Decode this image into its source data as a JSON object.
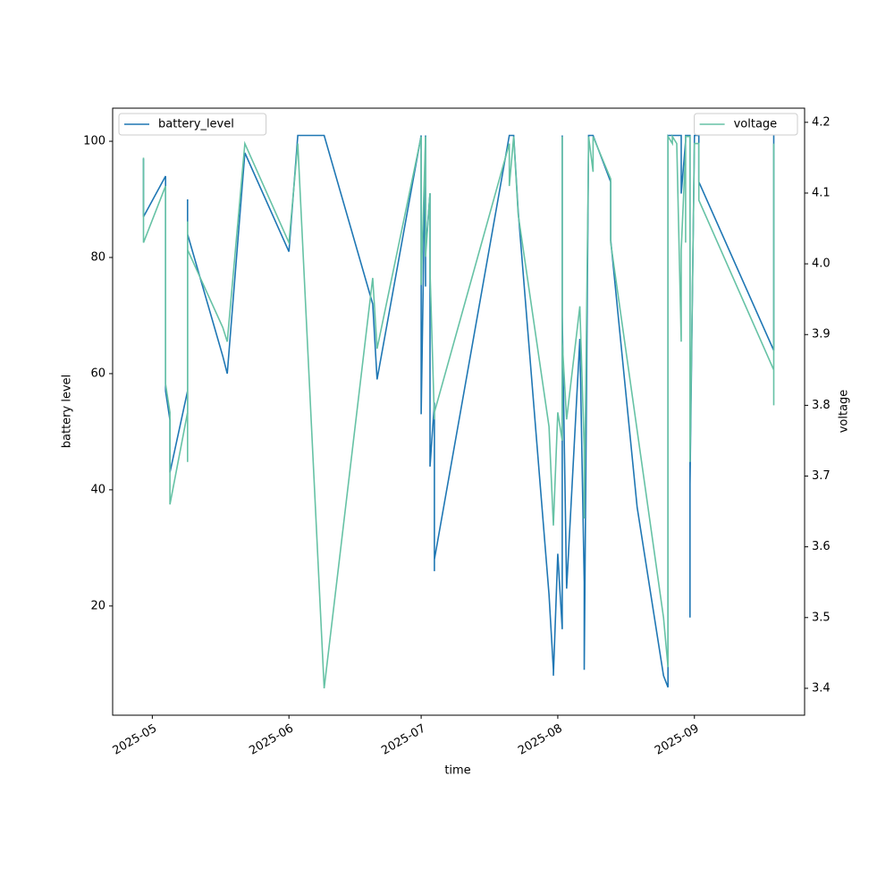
{
  "chart_data": {
    "type": "line",
    "x_label": "time",
    "y_label": "battery level",
    "y2_label": "voltage",
    "xlim": [
      "2025-04-22",
      "2025-09-26"
    ],
    "xticks": [
      "2025-05",
      "2025-06",
      "2025-07",
      "2025-08",
      "2025-09"
    ],
    "ylim": [
      1.2,
      105.7
    ],
    "yticks": [
      20,
      40,
      60,
      80,
      100
    ],
    "y2lim": [
      3.362,
      4.22
    ],
    "y2ticks": [
      3.4,
      3.5,
      3.6,
      3.7,
      3.8,
      3.9,
      {
        "value": 4,
        "label": "4.0"
      },
      4.1,
      4.2
    ],
    "series": [
      {
        "name": "battery_level",
        "color": "#1f77b4",
        "axis": "y",
        "legend": "upper left",
        "x": [
          "2025-04-29",
          "2025-04-29",
          "2025-05-04",
          "2025-05-04",
          "2025-05-05",
          "2025-05-05",
          "2025-05-09",
          "2025-05-09",
          "2025-05-09",
          "2025-05-09",
          "2025-05-17",
          "2025-05-18",
          "2025-05-22",
          "2025-06-01",
          "2025-06-03",
          "2025-06-09",
          "2025-06-20",
          "2025-06-21",
          "2025-07-01",
          "2025-07-01",
          "2025-07-01",
          "2025-07-02",
          "2025-07-02",
          "2025-07-02",
          "2025-07-02",
          "2025-07-03",
          "2025-07-03",
          "2025-07-04",
          "2025-07-04",
          "2025-07-04",
          "2025-07-21",
          "2025-07-22",
          "2025-07-23",
          "2025-07-30",
          "2025-07-31",
          "2025-07-31",
          "2025-08-01",
          "2025-08-02",
          "2025-08-02",
          "2025-08-02",
          "2025-08-03",
          "2025-08-06",
          "2025-08-07",
          "2025-08-07",
          "2025-08-07",
          "2025-08-08",
          "2025-08-09",
          "2025-08-13",
          "2025-08-13",
          "2025-08-19",
          "2025-08-25",
          "2025-08-26",
          "2025-08-26",
          "2025-08-28",
          "2025-08-29",
          "2025-08-29",
          "2025-08-30",
          "2025-08-30",
          "2025-08-31",
          "2025-08-31",
          "2025-08-31",
          "2025-09-01",
          "2025-09-02",
          "2025-09-02",
          "2025-09-19",
          "2025-09-19"
        ],
        "values": [
          97,
          87,
          94,
          57,
          52,
          43,
          57,
          53,
          90,
          84,
          63,
          60,
          98,
          81,
          101,
          101,
          72,
          59,
          101,
          60,
          53,
          101,
          75,
          101,
          81,
          91,
          44,
          55,
          26,
          28,
          101,
          101,
          88,
          22,
          9,
          8,
          29,
          16,
          101,
          70,
          23,
          66,
          24,
          9,
          9,
          101,
          101,
          93,
          83,
          37,
          8,
          6,
          101,
          101,
          101,
          91,
          100,
          101,
          101,
          18,
          41,
          101,
          101,
          93,
          64,
          101
        ]
      },
      {
        "name": "voltage",
        "color": "#66c2a5",
        "axis": "y2",
        "legend": "upper right",
        "x": [
          "2025-04-29",
          "2025-04-29",
          "2025-05-04",
          "2025-05-04",
          "2025-05-05",
          "2025-05-05",
          "2025-05-09",
          "2025-05-09",
          "2025-05-09",
          "2025-05-09",
          "2025-05-17",
          "2025-05-18",
          "2025-05-22",
          "2025-06-01",
          "2025-06-03",
          "2025-06-09",
          "2025-06-20",
          "2025-06-21",
          "2025-07-01",
          "2025-07-01",
          "2025-07-02",
          "2025-07-02",
          "2025-07-02",
          "2025-07-03",
          "2025-07-03",
          "2025-07-04",
          "2025-07-04",
          "2025-07-21",
          "2025-07-21",
          "2025-07-22",
          "2025-07-22",
          "2025-07-23",
          "2025-07-30",
          "2025-07-31",
          "2025-08-01",
          "2025-08-02",
          "2025-08-02",
          "2025-08-02",
          "2025-08-03",
          "2025-08-06",
          "2025-08-07",
          "2025-08-07",
          "2025-08-08",
          "2025-08-08",
          "2025-08-09",
          "2025-08-09",
          "2025-08-13",
          "2025-08-13",
          "2025-08-25",
          "2025-08-26",
          "2025-08-26",
          "2025-08-27",
          "2025-08-27",
          "2025-08-28",
          "2025-08-29",
          "2025-08-29",
          "2025-08-30",
          "2025-08-30",
          "2025-08-30",
          "2025-08-31",
          "2025-08-31",
          "2025-09-01",
          "2025-09-02",
          "2025-09-02",
          "2025-09-19",
          "2025-09-19",
          "2025-09-19"
        ],
        "values": [
          4.15,
          4.03,
          4.11,
          3.83,
          3.79,
          3.66,
          3.79,
          3.72,
          4.06,
          4.02,
          3.91,
          3.89,
          4.17,
          4.03,
          4.17,
          3.4,
          3.98,
          3.88,
          4.18,
          3.97,
          4.18,
          4.18,
          4.01,
          4.1,
          3.99,
          3.78,
          3.79,
          4.17,
          4.11,
          4.18,
          4.18,
          4.07,
          3.77,
          3.63,
          3.79,
          3.75,
          4.18,
          3.89,
          3.78,
          3.94,
          3.74,
          3.64,
          4.17,
          4.18,
          4.13,
          4.18,
          4.12,
          4.03,
          3.5,
          3.43,
          4.18,
          4.17,
          4.18,
          4.17,
          3.89,
          4.02,
          4.16,
          4.03,
          4.18,
          4.18,
          3.72,
          4.17,
          4.17,
          4.09,
          3.85,
          3.8,
          4.17
        ]
      }
    ]
  }
}
